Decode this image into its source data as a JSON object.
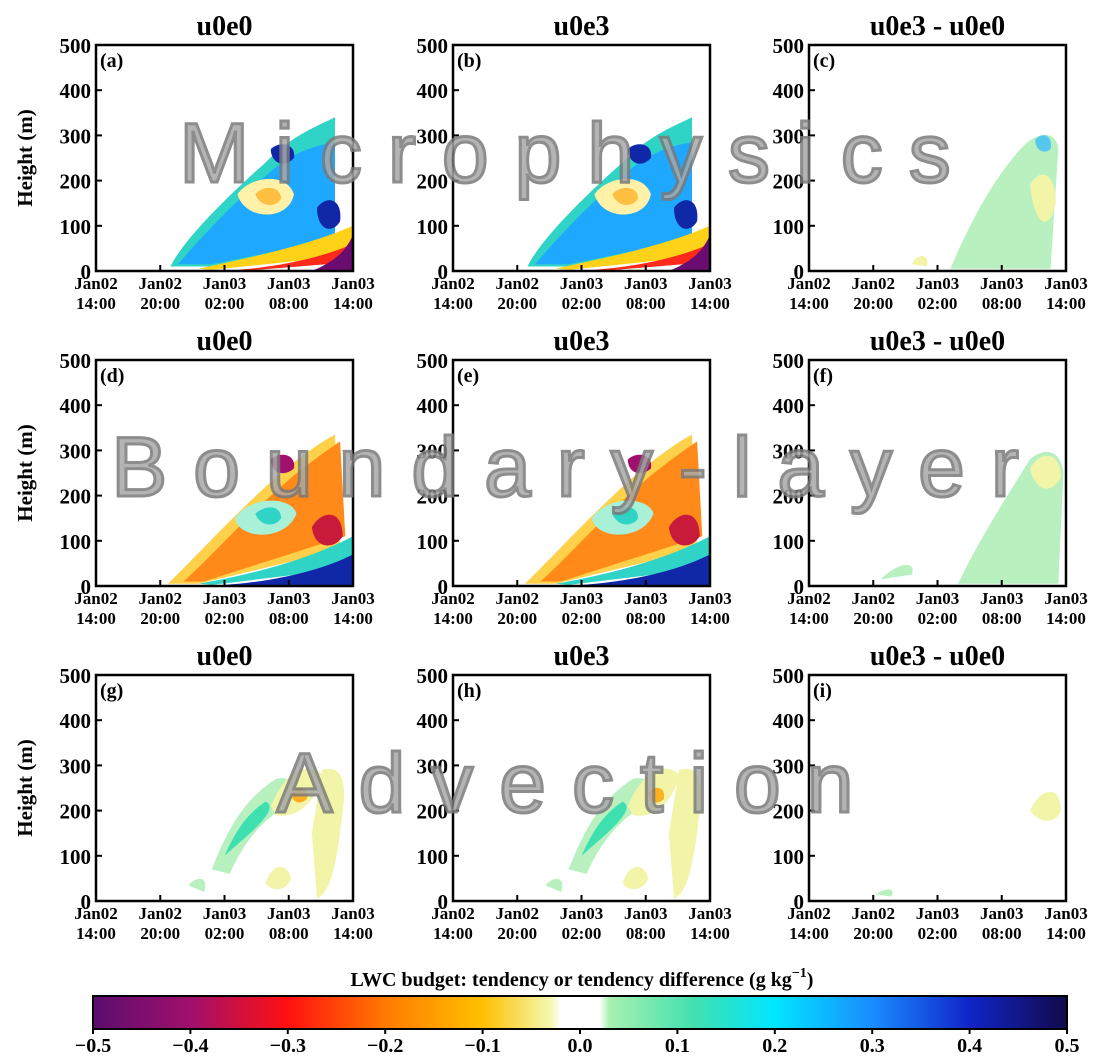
{
  "watermarks": [
    "Microphysics",
    "Boundary-layer",
    "Advection"
  ],
  "colorbar": {
    "label": "LWC budget: tendency or tendency difference (g kg",
    "label_exp": "−1",
    "label_end": ")",
    "ticks": [
      "−0.5",
      "−0.4",
      "−0.3",
      "−0.2",
      "−0.1",
      "0.0",
      "0.1",
      "0.2",
      "0.3",
      "0.4",
      "0.5"
    ],
    "range": [
      -0.5,
      0.5
    ],
    "colormap": "purple-red-orange-yellow-white-green-cyan-blue-navy"
  },
  "chart_data": [
    {
      "panel": "(a)",
      "title": "u0e0",
      "row": "Microphysics",
      "type": "heatmap",
      "ylabel": "Height (m)",
      "ylim": [
        0,
        500
      ],
      "yticks": [
        "500",
        "400",
        "300",
        "200",
        "100",
        "0"
      ],
      "xticks": [
        [
          "Jan02",
          "14:00"
        ],
        [
          "Jan02",
          "20:00"
        ],
        [
          "Jan03",
          "02:00"
        ],
        [
          "Jan03",
          "08:00"
        ],
        [
          "Jan03",
          "14:00"
        ]
      ]
    },
    {
      "panel": "(b)",
      "title": "u0e3",
      "row": "Microphysics",
      "type": "heatmap",
      "ylabel": "",
      "ylim": [
        0,
        500
      ],
      "yticks": [
        "500",
        "400",
        "300",
        "200",
        "100",
        "0"
      ],
      "xticks": [
        [
          "Jan02",
          "14:00"
        ],
        [
          "Jan02",
          "20:00"
        ],
        [
          "Jan03",
          "02:00"
        ],
        [
          "Jan03",
          "08:00"
        ],
        [
          "Jan03",
          "14:00"
        ]
      ]
    },
    {
      "panel": "(c)",
      "title": "u0e3 - u0e0",
      "row": "Microphysics",
      "type": "heatmap",
      "ylabel": "",
      "ylim": [
        0,
        500
      ],
      "yticks": [
        "500",
        "400",
        "300",
        "200",
        "100",
        "0"
      ],
      "xticks": [
        [
          "Jan02",
          "14:00"
        ],
        [
          "Jan02",
          "20:00"
        ],
        [
          "Jan03",
          "02:00"
        ],
        [
          "Jan03",
          "08:00"
        ],
        [
          "Jan03",
          "14:00"
        ]
      ]
    },
    {
      "panel": "(d)",
      "title": "u0e0",
      "row": "Boundary-layer",
      "type": "heatmap",
      "ylabel": "Height (m)",
      "ylim": [
        0,
        500
      ],
      "yticks": [
        "500",
        "400",
        "300",
        "200",
        "100",
        "0"
      ],
      "xticks": [
        [
          "Jan02",
          "14:00"
        ],
        [
          "Jan02",
          "20:00"
        ],
        [
          "Jan03",
          "02:00"
        ],
        [
          "Jan03",
          "08:00"
        ],
        [
          "Jan03",
          "14:00"
        ]
      ]
    },
    {
      "panel": "(e)",
      "title": "u0e3",
      "row": "Boundary-layer",
      "type": "heatmap",
      "ylabel": "",
      "ylim": [
        0,
        500
      ],
      "yticks": [
        "500",
        "400",
        "300",
        "200",
        "100",
        "0"
      ],
      "xticks": [
        [
          "Jan02",
          "14:00"
        ],
        [
          "Jan02",
          "20:00"
        ],
        [
          "Jan03",
          "02:00"
        ],
        [
          "Jan03",
          "08:00"
        ],
        [
          "Jan03",
          "14:00"
        ]
      ]
    },
    {
      "panel": "(f)",
      "title": "u0e3 - u0e0",
      "row": "Boundary-layer",
      "type": "heatmap",
      "ylabel": "",
      "ylim": [
        0,
        500
      ],
      "yticks": [
        "500",
        "400",
        "300",
        "200",
        "100",
        "0"
      ],
      "xticks": [
        [
          "Jan02",
          "14:00"
        ],
        [
          "Jan02",
          "20:00"
        ],
        [
          "Jan03",
          "02:00"
        ],
        [
          "Jan03",
          "08:00"
        ],
        [
          "Jan03",
          "14:00"
        ]
      ]
    },
    {
      "panel": "(g)",
      "title": "u0e0",
      "row": "Advection",
      "type": "heatmap",
      "ylabel": "Height (m)",
      "ylim": [
        0,
        500
      ],
      "yticks": [
        "500",
        "400",
        "300",
        "200",
        "100",
        "0"
      ],
      "xticks": [
        [
          "Jan02",
          "14:00"
        ],
        [
          "Jan02",
          "20:00"
        ],
        [
          "Jan03",
          "02:00"
        ],
        [
          "Jan03",
          "08:00"
        ],
        [
          "Jan03",
          "14:00"
        ]
      ]
    },
    {
      "panel": "(h)",
      "title": "u0e3",
      "row": "Advection",
      "type": "heatmap",
      "ylabel": "",
      "ylim": [
        0,
        500
      ],
      "yticks": [
        "500",
        "400",
        "300",
        "200",
        "100",
        "0"
      ],
      "xticks": [
        [
          "Jan02",
          "14:00"
        ],
        [
          "Jan02",
          "20:00"
        ],
        [
          "Jan03",
          "02:00"
        ],
        [
          "Jan03",
          "08:00"
        ],
        [
          "Jan03",
          "14:00"
        ]
      ]
    },
    {
      "panel": "(i)",
      "title": "u0e3 - u0e0",
      "row": "Advection",
      "type": "heatmap",
      "ylabel": "",
      "ylim": [
        0,
        500
      ],
      "yticks": [
        "500",
        "400",
        "300",
        "200",
        "100",
        "0"
      ],
      "xticks": [
        [
          "Jan02",
          "14:00"
        ],
        [
          "Jan02",
          "20:00"
        ],
        [
          "Jan03",
          "02:00"
        ],
        [
          "Jan03",
          "08:00"
        ],
        [
          "Jan03",
          "14:00"
        ]
      ]
    }
  ]
}
